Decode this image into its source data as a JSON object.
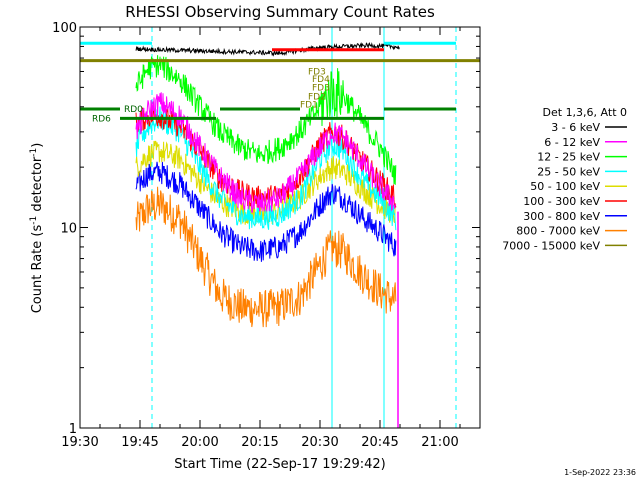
{
  "chart_data": {
    "type": "line",
    "title": "RHESSI Observing Summary Count Rates",
    "xlabel": "Start Time (22-Sep-17 19:29:42)",
    "ylabel": "Count Rate (s⁻¹ detector⁻¹)",
    "ylabel_main": "Count Rate (s",
    "ylabel_sup1": "-1",
    "ylabel_mid": " detector",
    "ylabel_sup2": "-1",
    "ylabel_end": ")",
    "y_scale": "log",
    "ylim": [
      1,
      100
    ],
    "xlim_minutes": [
      0,
      100
    ],
    "x_ticks": [
      {
        "m": 0,
        "label": "19:30"
      },
      {
        "m": 15,
        "label": "19:45"
      },
      {
        "m": 30,
        "label": "20:00"
      },
      {
        "m": 45,
        "label": "20:15"
      },
      {
        "m": 60,
        "label": "20:30"
      },
      {
        "m": 75,
        "label": "20:45"
      },
      {
        "m": 90,
        "label": "21:00"
      }
    ],
    "y_ticks": [
      {
        "v": 1,
        "label": "1"
      },
      {
        "v": 10,
        "label": "10"
      },
      {
        "v": 100,
        "label": "100"
      }
    ],
    "legend_title": "Det 1,3,6, Att 0",
    "legend_position": "right",
    "series": [
      {
        "name": "3 - 6 keV",
        "color": "#000000",
        "x": [
          14,
          20,
          30,
          40,
          50,
          54,
          60,
          66,
          72,
          78,
          80
        ],
        "y": [
          78,
          77,
          76,
          75,
          74,
          76,
          79,
          80,
          81,
          80,
          79
        ]
      },
      {
        "name": "6 - 12 keV",
        "color": "#ff00ff",
        "x": [
          14,
          17,
          20,
          25,
          30,
          35,
          40,
          45,
          50,
          55,
          60,
          63,
          66,
          70,
          75,
          79
        ],
        "y": [
          30,
          38,
          42,
          36,
          25,
          18,
          14,
          13,
          14,
          18,
          25,
          30,
          28,
          22,
          16,
          13
        ]
      },
      {
        "name": "12 - 25 keV",
        "color": "#00ff00",
        "x": [
          14,
          17,
          20,
          25,
          30,
          35,
          40,
          45,
          50,
          55,
          60,
          63,
          66,
          70,
          75,
          79
        ],
        "y": [
          50,
          62,
          65,
          55,
          40,
          30,
          25,
          23,
          25,
          30,
          40,
          48,
          45,
          35,
          25,
          18
        ]
      },
      {
        "name": "25 - 50 keV",
        "color": "#00ffff",
        "x": [
          14,
          17,
          20,
          25,
          30,
          35,
          40,
          45,
          50,
          55,
          60,
          63,
          66,
          70,
          75,
          79
        ],
        "y": [
          25,
          32,
          35,
          30,
          20,
          14,
          11.5,
          11,
          11.5,
          14,
          22,
          26,
          24,
          18,
          14,
          11
        ]
      },
      {
        "name": "50 - 100 keV",
        "color": "#dddd00",
        "x": [
          14,
          17,
          20,
          25,
          30,
          35,
          40,
          45,
          50,
          55,
          60,
          63,
          66,
          70,
          75,
          79
        ],
        "y": [
          20,
          23,
          24,
          22,
          17,
          13.5,
          12,
          11.5,
          12,
          14,
          18,
          20,
          19,
          16,
          13,
          11.5
        ]
      },
      {
        "name": "100 - 300 keV",
        "color": "#ff0000",
        "x": [
          14,
          17,
          20,
          25,
          30,
          35,
          40,
          45,
          50,
          55,
          60,
          63,
          66,
          70,
          75,
          79
        ],
        "y": [
          33,
          36,
          36,
          32,
          24,
          17.5,
          15,
          14,
          14.5,
          18,
          26,
          30,
          28,
          22,
          17,
          14
        ]
      },
      {
        "name": "300 - 800 keV",
        "color": "#0000ff",
        "x": [
          14,
          17,
          20,
          25,
          30,
          35,
          40,
          45,
          50,
          55,
          60,
          63,
          66,
          70,
          75,
          79
        ],
        "y": [
          16,
          18.5,
          19,
          16.5,
          12.5,
          9.5,
          8,
          7.6,
          8,
          9.5,
          13,
          15,
          14,
          11.5,
          9.5,
          8
        ]
      },
      {
        "name": "800 - 7000 keV",
        "color": "#ff8000",
        "x": [
          14,
          17,
          20,
          25,
          30,
          35,
          40,
          45,
          50,
          55,
          60,
          63,
          66,
          70,
          75,
          79
        ],
        "y": [
          10.5,
          12.5,
          13,
          11,
          7,
          4.6,
          4,
          3.9,
          4,
          4.5,
          6.5,
          8,
          7.5,
          6,
          4.8,
          4.3
        ]
      },
      {
        "name": "7000 - 15000 keV",
        "color": "#808000",
        "x": [
          0,
          100
        ],
        "y": [
          68,
          68
        ]
      }
    ],
    "annotations": [
      {
        "text": "RD0",
        "x": 11,
        "y": 39,
        "color": "#006400"
      },
      {
        "text": "RD6",
        "x": 3,
        "y": 35,
        "color": "#006400"
      },
      {
        "text": "FD3",
        "x": 57,
        "y": 60,
        "color": "#808000"
      },
      {
        "text": "FD4",
        "x": 58,
        "y": 55,
        "color": "#808000"
      },
      {
        "text": "FD3",
        "x": 58,
        "y": 50,
        "color": "#808000"
      },
      {
        "text": "FD2",
        "x": 57,
        "y": 45,
        "color": "#808000"
      },
      {
        "text": "FD1",
        "x": 55,
        "y": 41,
        "color": "#808000"
      }
    ],
    "vertical_lines": [
      {
        "m": 0,
        "style": "solid",
        "color": "#00ffff"
      },
      {
        "m": 18,
        "style": "dashed",
        "color": "#00ffff"
      },
      {
        "m": 63,
        "style": "solid",
        "color": "#00ffff"
      },
      {
        "m": 76,
        "style": "solid",
        "color": "#00ffff"
      },
      {
        "m": 94,
        "style": "dashed",
        "color": "#00ffff"
      }
    ],
    "horizontal_segments": [
      {
        "x0": 0,
        "x1": 18,
        "y": 83,
        "color": "#00ffff"
      },
      {
        "x0": 76,
        "x1": 94,
        "y": 83,
        "color": "#00ffff"
      },
      {
        "x0": 48,
        "x1": 76,
        "y": 77,
        "color": "#ff0000"
      },
      {
        "x0": 0,
        "x1": 10,
        "y": 39,
        "color": "#008000"
      },
      {
        "x0": 35,
        "x1": 55,
        "y": 39,
        "color": "#008000"
      },
      {
        "x0": 76,
        "x1": 94,
        "y": 39,
        "color": "#008000"
      },
      {
        "x0": 10,
        "x1": 34,
        "y": 35,
        "color": "#008000"
      },
      {
        "x0": 55,
        "x1": 76,
        "y": 35,
        "color": "#008000"
      }
    ]
  },
  "footer_timestamp": "1-Sep-2022 23:36"
}
